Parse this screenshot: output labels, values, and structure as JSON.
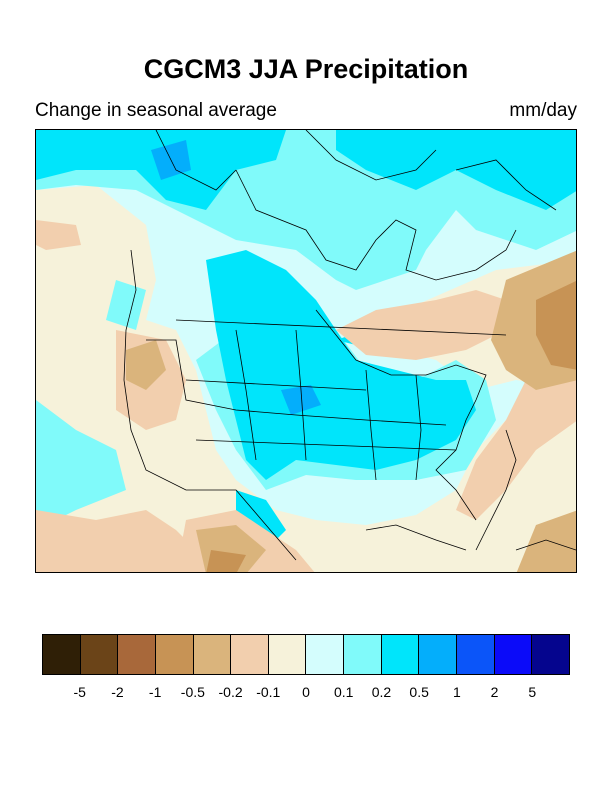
{
  "title": "CGCM3 JJA Precipitation",
  "subtitle_left": "Change in seasonal average",
  "subtitle_right": "mm/day",
  "colorbar": {
    "colors": [
      "#2f1f06",
      "#6b4418",
      "#a8683a",
      "#c79355",
      "#dab47c",
      "#f2cfae",
      "#f6f2da",
      "#d4fdfd",
      "#80fafa",
      "#00e5fb",
      "#04aefb",
      "#0b55f9",
      "#0b0bf9",
      "#05058e"
    ],
    "labels": [
      "-5",
      "-2",
      "-1",
      "-0.5",
      "-0.2",
      "-0.1",
      "0",
      "0.1",
      "0.2",
      "0.5",
      "1",
      "2",
      "5"
    ]
  }
}
